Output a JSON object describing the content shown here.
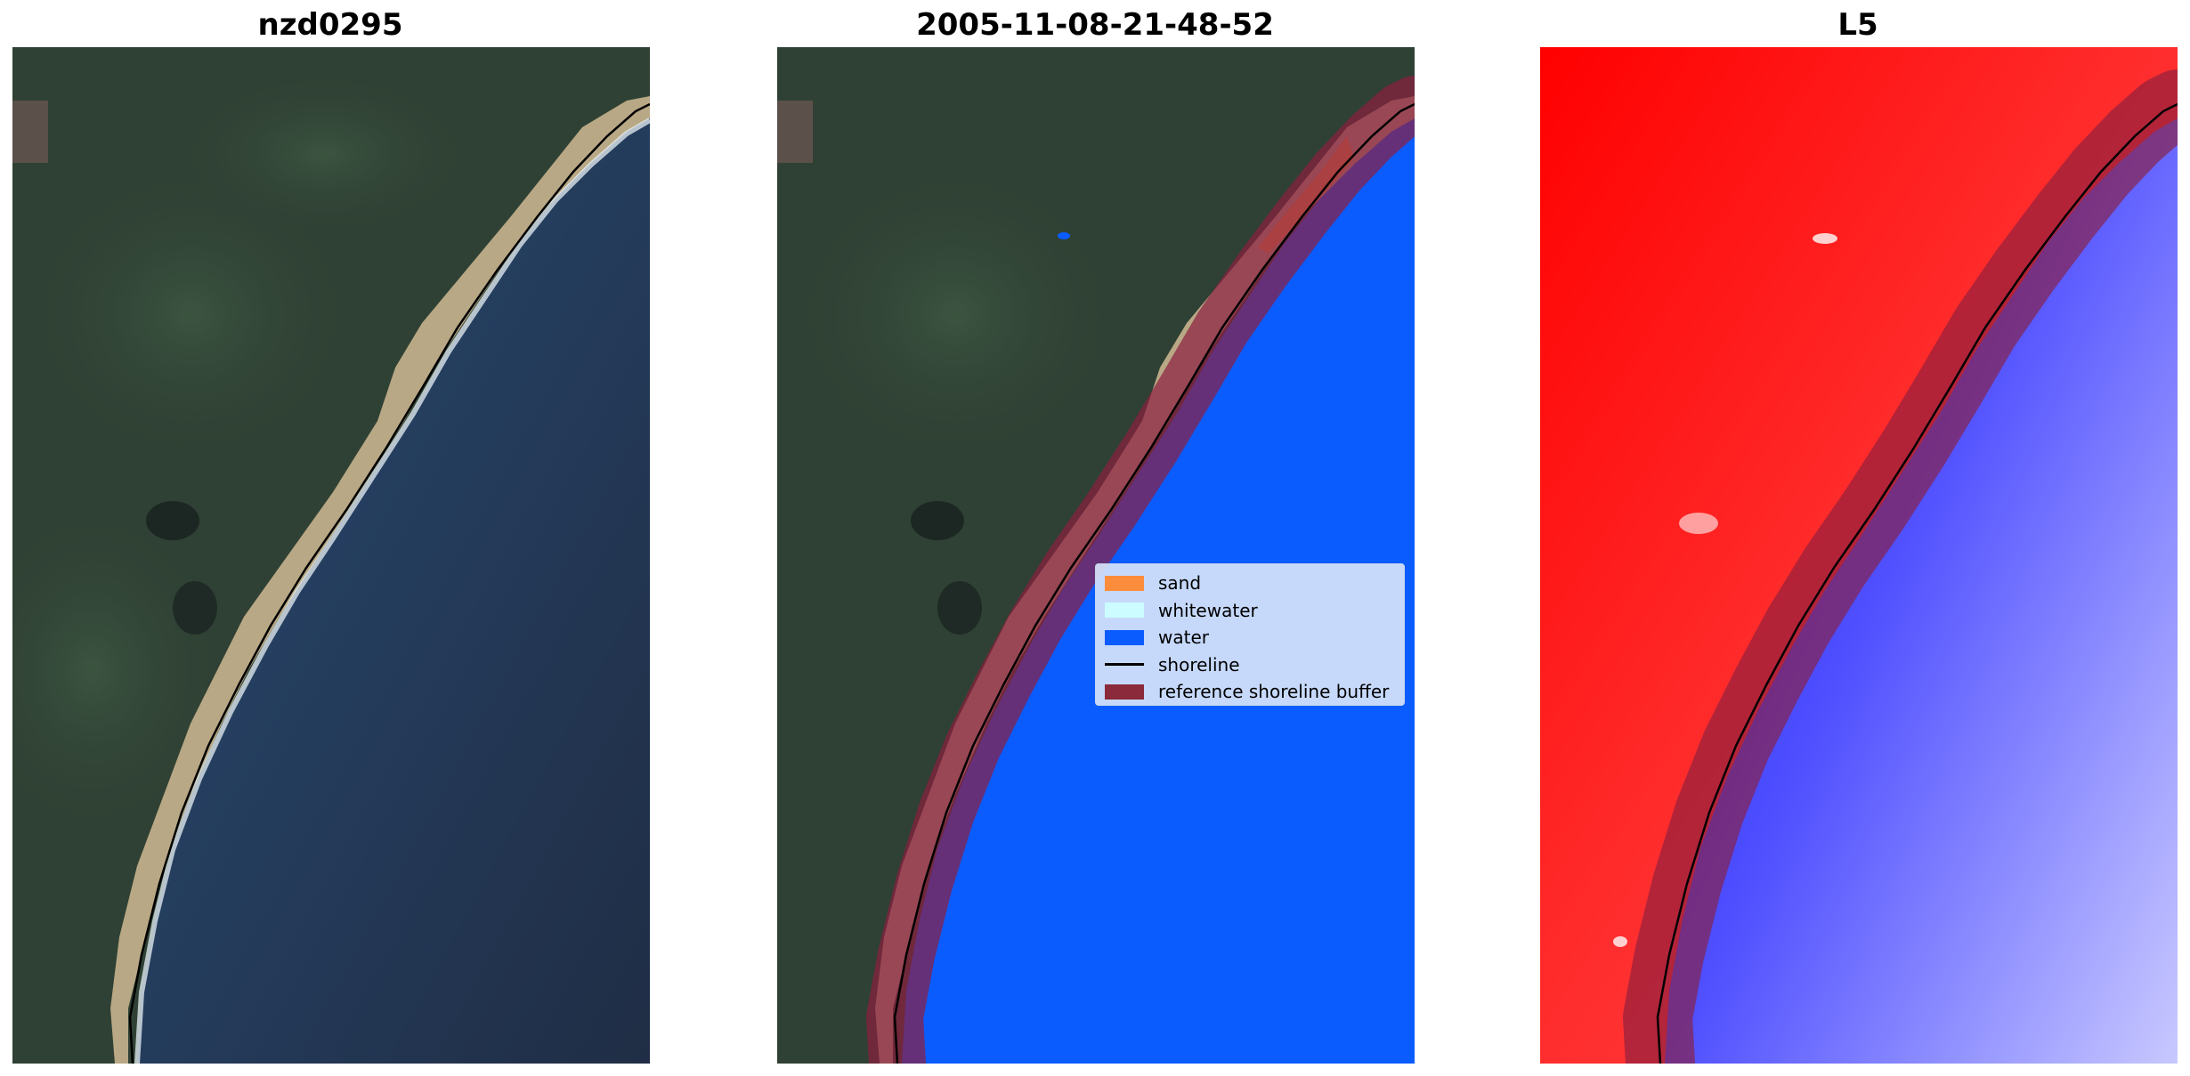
{
  "panels": [
    {
      "title": "nzd0295"
    },
    {
      "title": "2005-11-08-21-48-52"
    },
    {
      "title": "L5"
    }
  ],
  "legend": {
    "items": [
      {
        "label": "sand",
        "color": "#fb8c3c",
        "kind": "patch"
      },
      {
        "label": "whitewater",
        "color": "#ccfcff",
        "kind": "patch"
      },
      {
        "label": "water",
        "color": "#0b5cff",
        "kind": "patch"
      },
      {
        "label": "shoreline",
        "color": "#000000",
        "kind": "line"
      },
      {
        "label": "reference shoreline buffer",
        "color": "#8b2a3a",
        "kind": "patch"
      }
    ]
  },
  "colors": {
    "land": "#2e3f33",
    "sand": "#c9b48e",
    "ocean": "#253552",
    "classified_water": "#0b5cff",
    "buffer": "#8b1e3f",
    "index_land": "#ff1a1a",
    "index_water": "#4040ff"
  }
}
